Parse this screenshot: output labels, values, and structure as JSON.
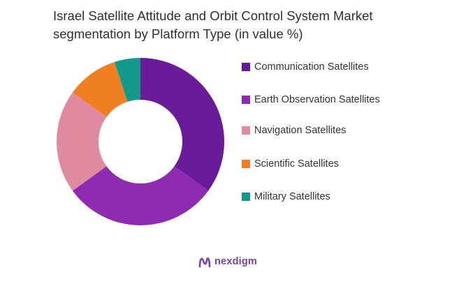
{
  "title_lines": [
    "Israel Satellite Attitude and Orbit Control System Market",
    "segmentation by Platform Type (in value %)"
  ],
  "brand": {
    "name": "nexdigm",
    "logo_icon": "nexdigm-logo-icon",
    "color": "#7a3fa8"
  },
  "chart_data": {
    "type": "pie",
    "subtype": "donut",
    "title": "Israel Satellite Attitude and Orbit Control System Market segmentation by Platform Type (in value %)",
    "legend_position": "right",
    "series": [
      {
        "name": "Communication Satellites",
        "value": 35,
        "color": "#6a1b9a"
      },
      {
        "name": "Earth Observation Satellites",
        "value": 30,
        "color": "#8e2bb0"
      },
      {
        "name": "Navigation Satellites",
        "value": 20,
        "color": "#e08aa0"
      },
      {
        "name": "Scientific Satellites",
        "value": 10,
        "color": "#f07f22"
      },
      {
        "name": "Military Satellites",
        "value": 5,
        "color": "#139a8a"
      }
    ]
  }
}
